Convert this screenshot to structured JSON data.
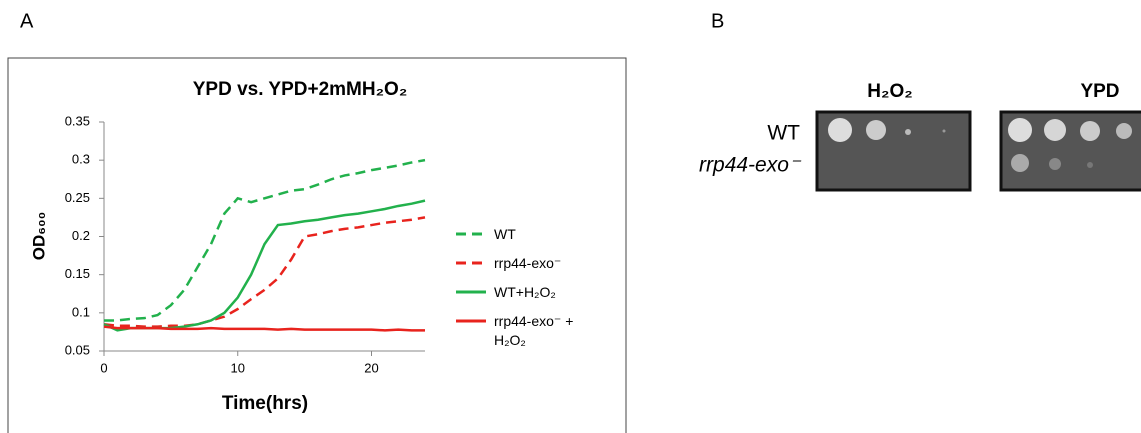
{
  "panel_labels": [
    "A",
    "B"
  ],
  "chart_data": {
    "type": "line",
    "title": "YPD vs. YPD+2mMH₂O₂",
    "x_label": "Time(hrs)",
    "y_label": "OD₆₀₀",
    "x": [
      0,
      1,
      2,
      3,
      4,
      5,
      6,
      7,
      8,
      9,
      10,
      11,
      12,
      13,
      14,
      15,
      16,
      17,
      18,
      19,
      20,
      21,
      22,
      23,
      24
    ],
    "xlim": [
      0,
      24
    ],
    "xticks": [
      0,
      10,
      20
    ],
    "ylim": [
      0.05,
      0.35
    ],
    "yticks": [
      0.05,
      0.1,
      0.15,
      0.2,
      0.25,
      0.3,
      0.35
    ],
    "grid": false,
    "series": [
      {
        "name": "WT",
        "color": "#22b14c",
        "dashed": true,
        "values": [
          0.09,
          0.09,
          0.092,
          0.093,
          0.097,
          0.11,
          0.13,
          0.16,
          0.19,
          0.23,
          0.25,
          0.245,
          0.25,
          0.255,
          0.26,
          0.262,
          0.268,
          0.275,
          0.28,
          0.283,
          0.287,
          0.29,
          0.293,
          0.297,
          0.3
        ]
      },
      {
        "name": "rrp44-exo⁻",
        "color": "#e8231d",
        "dashed": true,
        "values": [
          0.085,
          0.083,
          0.083,
          0.082,
          0.082,
          0.083,
          0.083,
          0.085,
          0.09,
          0.095,
          0.105,
          0.118,
          0.13,
          0.145,
          0.17,
          0.2,
          0.203,
          0.207,
          0.21,
          0.212,
          0.215,
          0.218,
          0.22,
          0.222,
          0.225
        ]
      },
      {
        "name": "WT+H₂O₂",
        "color": "#22b14c",
        "dashed": false,
        "values": [
          0.085,
          0.077,
          0.08,
          0.08,
          0.08,
          0.08,
          0.082,
          0.085,
          0.09,
          0.1,
          0.12,
          0.15,
          0.19,
          0.215,
          0.217,
          0.22,
          0.222,
          0.225,
          0.228,
          0.23,
          0.233,
          0.236,
          0.24,
          0.243,
          0.247
        ]
      },
      {
        "name": "rrp44-exo⁻ + H₂O₂",
        "color": "#e8231d",
        "dashed": false,
        "values": [
          0.082,
          0.08,
          0.08,
          0.08,
          0.08,
          0.079,
          0.079,
          0.079,
          0.08,
          0.079,
          0.079,
          0.079,
          0.079,
          0.078,
          0.079,
          0.078,
          0.078,
          0.078,
          0.078,
          0.078,
          0.078,
          0.077,
          0.078,
          0.077,
          0.077
        ]
      }
    ]
  },
  "spot_assay": {
    "columns": [
      "H₂O₂",
      "YPD"
    ],
    "rows": [
      "WT",
      "rrp44-exo⁻"
    ]
  }
}
